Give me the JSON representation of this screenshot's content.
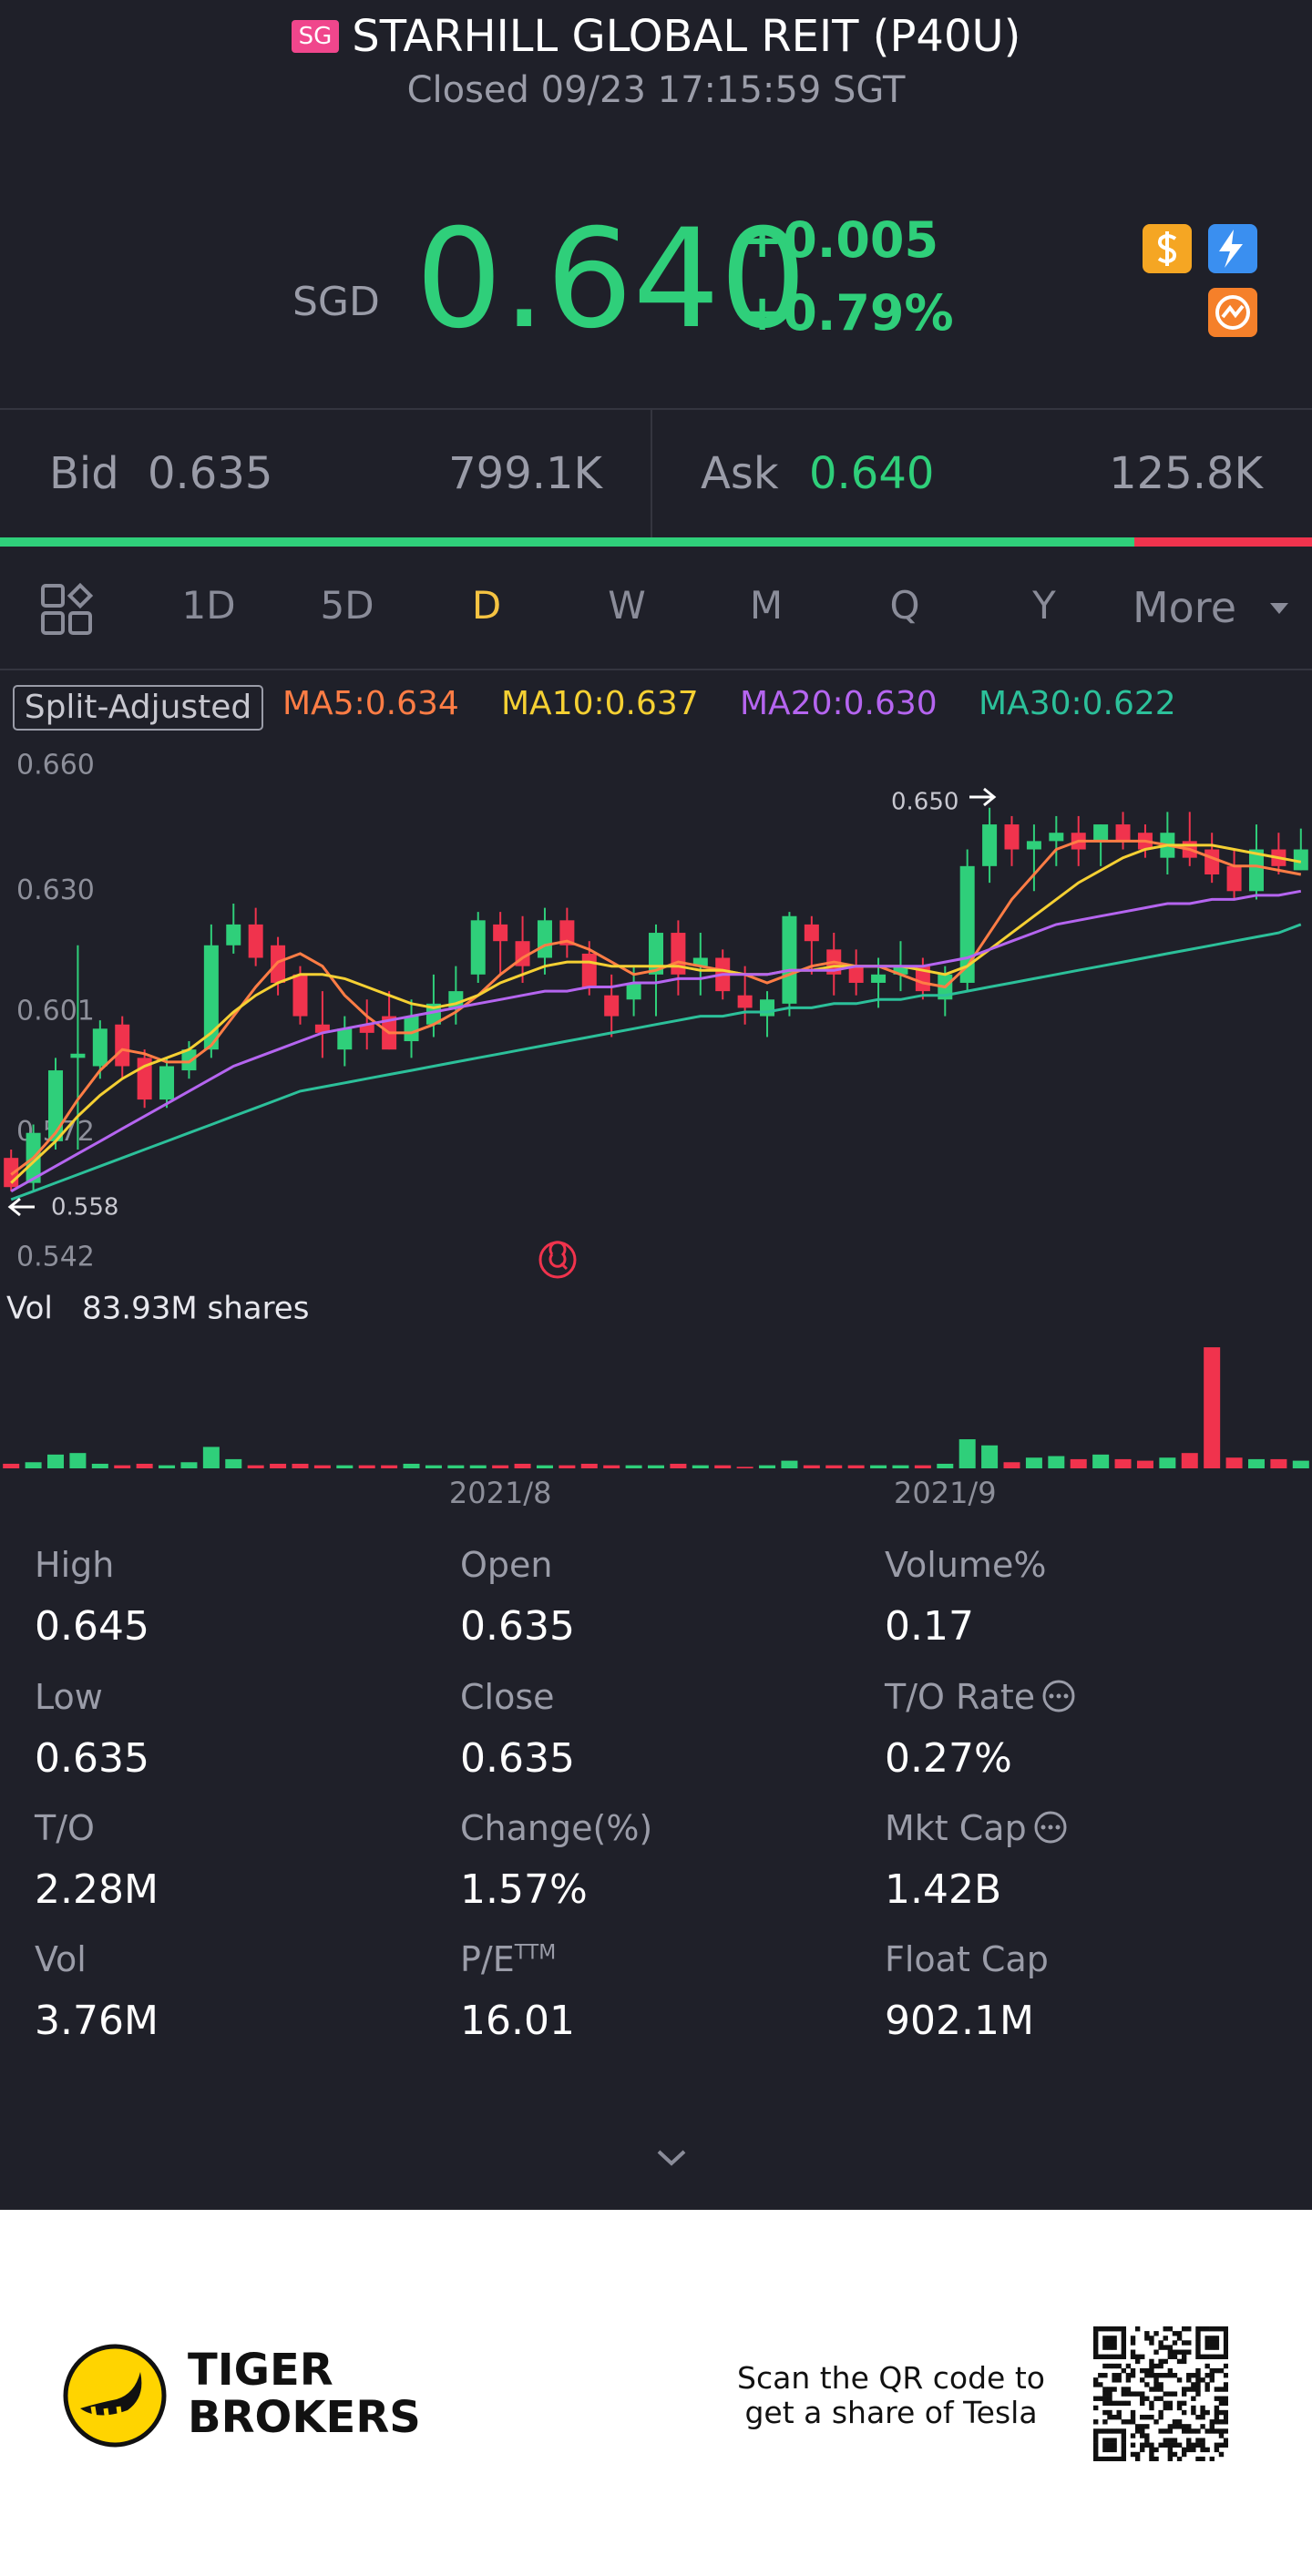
{
  "header": {
    "badge": "SG",
    "title": "STARHILL GLOBAL REIT (P40U)",
    "status": "Closed 09/23 17:15:59 SGT"
  },
  "quote": {
    "currency": "SGD",
    "price": "0.640",
    "change": "+0.005",
    "change_pct": "+0.79%"
  },
  "bid_ask": {
    "bid_label": "Bid",
    "bid": "0.635",
    "bid_size": "799.1K",
    "ask_label": "Ask",
    "ask": "0.640",
    "ask_size": "125.8K"
  },
  "tabs": [
    "1D",
    "5D",
    "D",
    "W",
    "M",
    "Q",
    "Y",
    "More"
  ],
  "chart_data": {
    "type": "candlestick",
    "adjustment": "Split-Adjusted",
    "up_color": "#2fcf7a",
    "down_color": "#f0334d",
    "ylim": [
      0.542,
      0.66
    ],
    "yticks": [
      {
        "value": 0.66,
        "label": "0.660"
      },
      {
        "value": 0.63,
        "label": "0.630"
      },
      0.601,
      0.572,
      0.542
    ],
    "high_label": "0.650",
    "low_label": "0.558",
    "categories": [
      null,
      null,
      null,
      null,
      null,
      null,
      null,
      null,
      null,
      null,
      null,
      null,
      null,
      null,
      null,
      null,
      null,
      null,
      null,
      null,
      null,
      null,
      "2021/8",
      null,
      null,
      null,
      null,
      null,
      null,
      null,
      null,
      null,
      null,
      null,
      null,
      null,
      null,
      null,
      null,
      null,
      null,
      null,
      "2021/9",
      null,
      null,
      null,
      null,
      null,
      null,
      null,
      null,
      null,
      null,
      null,
      null,
      null,
      null,
      null,
      null
    ],
    "ohlc": [
      [
        0.566,
        0.568,
        0.558,
        0.559
      ],
      [
        0.56,
        0.574,
        0.558,
        0.572
      ],
      [
        0.57,
        0.59,
        0.568,
        0.587
      ],
      [
        0.59,
        0.617,
        0.568,
        0.591
      ],
      [
        0.588,
        0.599,
        0.585,
        0.597
      ],
      [
        0.598,
        0.6,
        0.585,
        0.588
      ],
      [
        0.59,
        0.592,
        0.578,
        0.58
      ],
      [
        0.58,
        0.59,
        0.578,
        0.588
      ],
      [
        0.587,
        0.594,
        0.585,
        0.592
      ],
      [
        0.592,
        0.622,
        0.59,
        0.617
      ],
      [
        0.617,
        0.627,
        0.615,
        0.622
      ],
      [
        0.622,
        0.626,
        0.612,
        0.614
      ],
      [
        0.617,
        0.619,
        0.605,
        0.608
      ],
      [
        0.61,
        0.612,
        0.598,
        0.6
      ],
      [
        0.598,
        0.606,
        0.59,
        0.596
      ],
      [
        0.592,
        0.6,
        0.588,
        0.597
      ],
      [
        0.598,
        0.604,
        0.592,
        0.596
      ],
      [
        0.6,
        0.606,
        0.592,
        0.592
      ],
      [
        0.594,
        0.604,
        0.59,
        0.6
      ],
      [
        0.598,
        0.61,
        0.595,
        0.603
      ],
      [
        0.602,
        0.612,
        0.598,
        0.606
      ],
      [
        0.61,
        0.625,
        0.608,
        0.623
      ],
      [
        0.622,
        0.625,
        0.61,
        0.618
      ],
      [
        0.618,
        0.624,
        0.608,
        0.612
      ],
      [
        0.614,
        0.626,
        0.61,
        0.623
      ],
      [
        0.623,
        0.626,
        0.614,
        0.617
      ],
      [
        0.615,
        0.618,
        0.605,
        0.607
      ],
      [
        0.605,
        0.61,
        0.595,
        0.6
      ],
      [
        0.604,
        0.612,
        0.6,
        0.608
      ],
      [
        0.61,
        0.622,
        0.6,
        0.62
      ],
      [
        0.62,
        0.623,
        0.605,
        0.61
      ],
      [
        0.612,
        0.62,
        0.605,
        0.614
      ],
      [
        0.614,
        0.616,
        0.604,
        0.606
      ],
      [
        0.605,
        0.612,
        0.598,
        0.602
      ],
      [
        0.6,
        0.606,
        0.595,
        0.604
      ],
      [
        0.603,
        0.625,
        0.6,
        0.624
      ],
      [
        0.622,
        0.624,
        0.61,
        0.618
      ],
      [
        0.616,
        0.62,
        0.605,
        0.61
      ],
      [
        0.612,
        0.616,
        0.605,
        0.608
      ],
      [
        0.608,
        0.614,
        0.602,
        0.61
      ],
      [
        0.61,
        0.618,
        0.606,
        0.612
      ],
      [
        0.612,
        0.614,
        0.604,
        0.606
      ],
      [
        0.604,
        0.612,
        0.6,
        0.61
      ],
      [
        0.608,
        0.64,
        0.606,
        0.636
      ],
      [
        0.636,
        0.65,
        0.632,
        0.646
      ],
      [
        0.646,
        0.648,
        0.636,
        0.64
      ],
      [
        0.64,
        0.646,
        0.63,
        0.642
      ],
      [
        0.642,
        0.648,
        0.636,
        0.644
      ],
      [
        0.644,
        0.648,
        0.636,
        0.64
      ],
      [
        0.642,
        0.646,
        0.636,
        0.646
      ],
      [
        0.646,
        0.649,
        0.64,
        0.642
      ],
      [
        0.644,
        0.646,
        0.638,
        0.64
      ],
      [
        0.638,
        0.649,
        0.634,
        0.644
      ],
      [
        0.642,
        0.649,
        0.636,
        0.638
      ],
      [
        0.64,
        0.644,
        0.632,
        0.634
      ],
      [
        0.636,
        0.64,
        0.628,
        0.63
      ],
      [
        0.63,
        0.646,
        0.628,
        0.64
      ],
      [
        0.64,
        0.644,
        0.634,
        0.636
      ],
      [
        0.635,
        0.645,
        0.635,
        0.64
      ]
    ],
    "series": [
      {
        "name": "MA5:0.634",
        "color": "#ff7d45",
        "values": [
          0.562,
          0.566,
          0.572,
          0.58,
          0.587,
          0.592,
          0.591,
          0.589,
          0.589,
          0.593,
          0.6,
          0.607,
          0.613,
          0.615,
          0.612,
          0.605,
          0.6,
          0.596,
          0.596,
          0.598,
          0.601,
          0.605,
          0.61,
          0.614,
          0.617,
          0.618,
          0.616,
          0.613,
          0.61,
          0.611,
          0.613,
          0.612,
          0.611,
          0.61,
          0.608,
          0.61,
          0.612,
          0.613,
          0.612,
          0.612,
          0.61,
          0.608,
          0.607,
          0.612,
          0.62,
          0.628,
          0.634,
          0.64,
          0.642,
          0.642,
          0.642,
          0.642,
          0.641,
          0.64,
          0.638,
          0.636,
          0.636,
          0.635,
          0.634
        ]
      },
      {
        "name": "MA10:0.637",
        "color": "#f5d033",
        "values": [
          0.56,
          0.565,
          0.57,
          0.576,
          0.581,
          0.585,
          0.588,
          0.59,
          0.592,
          0.596,
          0.601,
          0.605,
          0.608,
          0.61,
          0.61,
          0.609,
          0.607,
          0.605,
          0.603,
          0.602,
          0.603,
          0.605,
          0.608,
          0.61,
          0.612,
          0.613,
          0.613,
          0.612,
          0.612,
          0.612,
          0.612,
          0.611,
          0.611,
          0.61,
          0.61,
          0.611,
          0.611,
          0.612,
          0.612,
          0.612,
          0.612,
          0.611,
          0.61,
          0.612,
          0.616,
          0.62,
          0.624,
          0.628,
          0.632,
          0.635,
          0.638,
          0.64,
          0.641,
          0.641,
          0.641,
          0.64,
          0.639,
          0.638,
          0.637
        ]
      },
      {
        "name": "MA20:0.630",
        "color": "#b565f0",
        "values": [
          0.558,
          0.561,
          0.564,
          0.567,
          0.57,
          0.573,
          0.576,
          0.579,
          0.582,
          0.585,
          0.588,
          0.59,
          0.592,
          0.594,
          0.596,
          0.597,
          0.598,
          0.599,
          0.6,
          0.601,
          0.602,
          0.603,
          0.604,
          0.605,
          0.606,
          0.606,
          0.607,
          0.607,
          0.608,
          0.608,
          0.609,
          0.609,
          0.61,
          0.61,
          0.61,
          0.611,
          0.611,
          0.611,
          0.612,
          0.612,
          0.612,
          0.612,
          0.613,
          0.614,
          0.616,
          0.618,
          0.62,
          0.622,
          0.623,
          0.624,
          0.625,
          0.626,
          0.627,
          0.627,
          0.628,
          0.628,
          0.629,
          0.629,
          0.63
        ]
      },
      {
        "name": "MA30:0.622",
        "color": "#2cc09a",
        "values": [
          0.556,
          0.558,
          0.56,
          0.562,
          0.564,
          0.566,
          0.568,
          0.57,
          0.572,
          0.574,
          0.576,
          0.578,
          0.58,
          0.582,
          0.583,
          0.584,
          0.585,
          0.586,
          0.587,
          0.588,
          0.589,
          0.59,
          0.591,
          0.592,
          0.593,
          0.594,
          0.595,
          0.596,
          0.597,
          0.598,
          0.599,
          0.6,
          0.6,
          0.601,
          0.601,
          0.602,
          0.602,
          0.603,
          0.603,
          0.604,
          0.604,
          0.605,
          0.605,
          0.606,
          0.607,
          0.608,
          0.609,
          0.61,
          0.611,
          0.612,
          0.613,
          0.614,
          0.615,
          0.616,
          0.617,
          0.618,
          0.619,
          0.62,
          0.622
        ]
      }
    ],
    "volume_title": "Vol",
    "volume_label": "83.93M shares",
    "volume_ylim": [
      0,
      85
    ],
    "volumes": [
      3,
      4,
      9,
      10,
      3,
      2,
      3,
      2,
      4,
      14,
      6,
      2,
      3,
      3,
      2,
      2,
      2,
      2,
      3,
      2,
      2,
      2,
      2,
      3,
      2,
      2,
      3,
      2,
      2,
      2,
      3,
      2,
      2,
      1,
      2,
      5,
      2,
      2,
      2,
      2,
      2,
      2,
      3,
      19,
      15,
      4,
      7,
      8,
      6,
      9,
      6,
      5,
      7,
      10,
      79,
      7,
      6,
      6,
      5
    ]
  },
  "stats": [
    {
      "label": "High",
      "value": "0.645"
    },
    {
      "label": "Open",
      "value": "0.635"
    },
    {
      "label": "Volume%",
      "value": "0.17"
    },
    {
      "label": "Low",
      "value": "0.635"
    },
    {
      "label": "Close",
      "value": "0.635"
    },
    {
      "label": "T/O Rate",
      "value": "0.27%"
    },
    {
      "label": "T/O",
      "value": "2.28M"
    },
    {
      "label": "Change(%)",
      "value": "1.57%"
    },
    {
      "label": "Mkt Cap",
      "value": "1.42B"
    },
    {
      "label": "Vol",
      "value": "3.76M"
    },
    {
      "label": "P/E",
      "label_sup": "TTM",
      "value": "16.01"
    },
    {
      "label": "Float Cap",
      "value": "902.1M"
    }
  ],
  "footer": {
    "brand": [
      "TIGER",
      "BROKERS"
    ],
    "promo": [
      "Scan the QR code to",
      "get a share of Tesla"
    ]
  }
}
